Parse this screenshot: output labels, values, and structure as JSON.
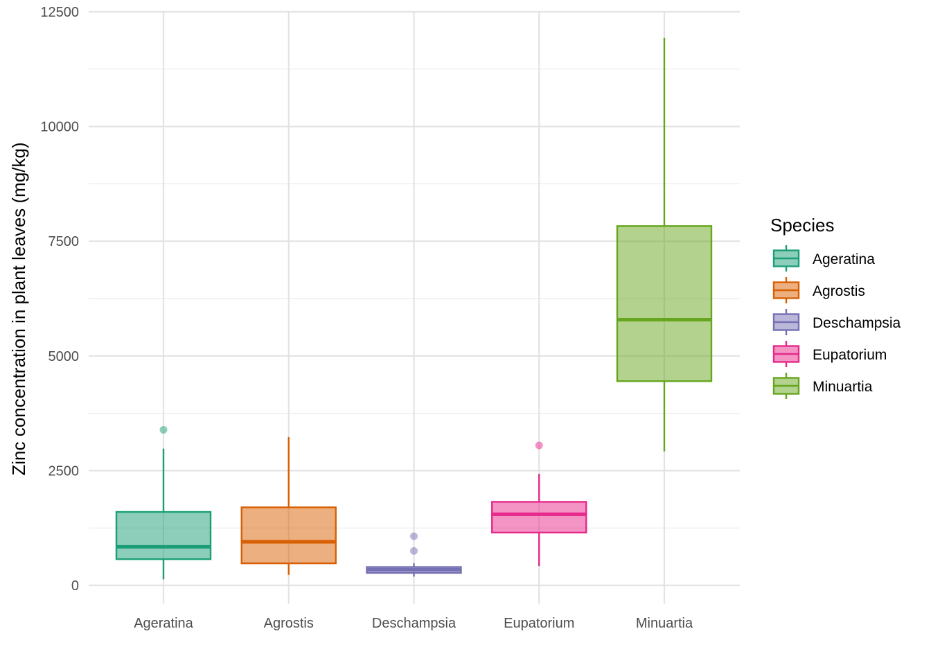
{
  "chart_data": {
    "type": "boxplot",
    "title": "",
    "xlabel": "",
    "ylabel": "Zinc concentration in plant leaves (mg/kg)",
    "ylim": [
      -400,
      12500
    ],
    "y_ticks": [
      0,
      2500,
      5000,
      7500,
      10000,
      12500
    ],
    "y_tick_labels": [
      "0",
      "2500",
      "5000",
      "7500",
      "10000",
      "12500"
    ],
    "grid": true,
    "legend": {
      "title": "Species",
      "position": "right"
    },
    "categories": [
      "Ageratina",
      "Agrostis",
      "Deschampsia",
      "Eupatorium",
      "Minuartia"
    ],
    "series": [
      {
        "name": "Ageratina",
        "color": "#1B9E77",
        "min": 130,
        "q1": 570,
        "median": 840,
        "q3": 1600,
        "max": 2980,
        "outliers": [
          3390
        ]
      },
      {
        "name": "Agrostis",
        "color": "#D95F02",
        "min": 230,
        "q1": 480,
        "median": 950,
        "q3": 1700,
        "max": 3230,
        "outliers": []
      },
      {
        "name": "Deschampsia",
        "color": "#7570B3",
        "min": 190,
        "q1": 270,
        "median": 340,
        "q3": 400,
        "max": 480,
        "outliers": [
          750,
          1070
        ]
      },
      {
        "name": "Eupatorium",
        "color": "#E7298A",
        "min": 420,
        "q1": 1150,
        "median": 1550,
        "q3": 1820,
        "max": 2430,
        "outliers": [
          3050
        ]
      },
      {
        "name": "Minuartia",
        "color": "#66A61E",
        "min": 2920,
        "q1": 4450,
        "median": 5790,
        "q3": 7830,
        "max": 11930,
        "outliers": []
      }
    ]
  }
}
